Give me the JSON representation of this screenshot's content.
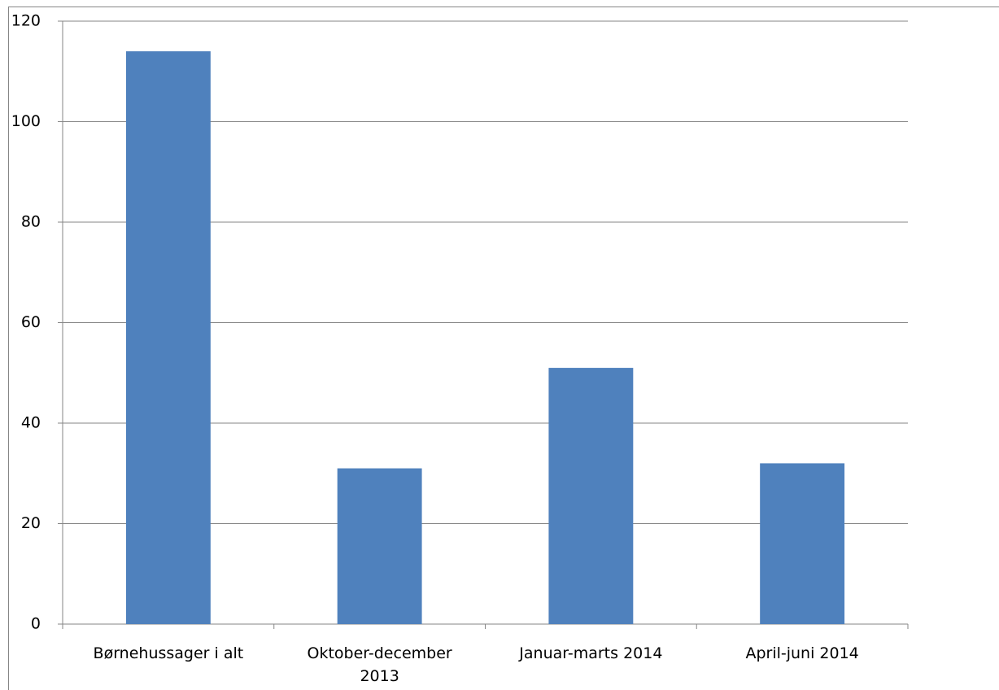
{
  "chart_data": {
    "type": "bar",
    "categories": [
      "Børnehussager i alt",
      "Oktober-december 2013",
      "Januar-marts 2014",
      "April-juni 2014"
    ],
    "values": [
      114,
      31,
      51,
      32
    ],
    "color": "#4f81bd",
    "ylim": [
      0,
      120
    ],
    "yticks": [
      0,
      20,
      40,
      60,
      80,
      100,
      120
    ],
    "grid": true
  }
}
